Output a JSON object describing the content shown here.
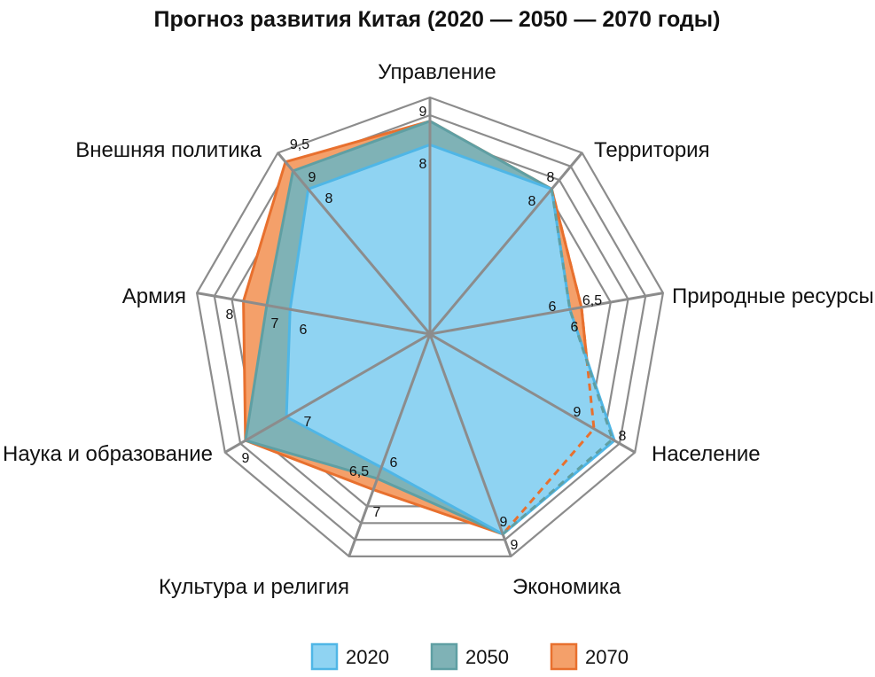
{
  "chart_data": {
    "type": "radar",
    "title": "Прогноз развития Китая (2020 — 2050 — 2070 годы)",
    "categories": [
      "Управление",
      "Территория",
      "Природные ресурсы",
      "Население",
      "Экономика",
      "Культура и религия",
      "Наука и образование",
      "Армия",
      "Внешняя политика"
    ],
    "rlim": [
      0,
      10
    ],
    "rings": 4,
    "series": [
      {
        "name": "2020",
        "values": [
          8,
          8,
          6,
          9,
          9,
          6,
          7,
          6,
          8
        ],
        "fill": "#8fd3f2",
        "stroke": "#4fb6e6",
        "labels": [
          "8",
          "8",
          "6",
          "9",
          "9",
          "6",
          "7",
          "6",
          "8"
        ]
      },
      {
        "name": "2050",
        "values": [
          9,
          8,
          6,
          8.9,
          9,
          6.5,
          9,
          7,
          9
        ],
        "fill": "#7fb2b6",
        "stroke": "#5f9fa3",
        "labels": [
          "9",
          "",
          "6",
          "",
          "9",
          "6,5",
          "9",
          "7",
          "9"
        ]
      },
      {
        "name": "2070",
        "values": [
          9,
          8,
          6.5,
          8,
          9,
          7,
          9,
          8,
          9.5
        ],
        "fill": "#f4a06a",
        "stroke": "#e8702e",
        "labels": [
          "",
          "8",
          "6,5",
          "8",
          "",
          "7",
          "",
          "8",
          "9,5"
        ]
      }
    ],
    "legend": {
      "position": "bottom",
      "items": [
        "2020",
        "2050",
        "2070"
      ]
    },
    "grid": true
  }
}
